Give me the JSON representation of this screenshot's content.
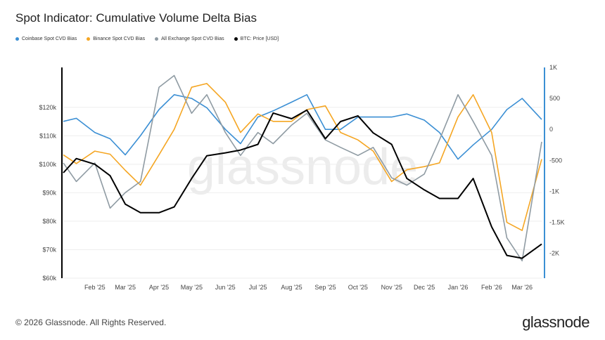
{
  "title": "Spot Indicator: Cumulative Volume Delta Bias",
  "footer": "© 2026 Glassnode. All Rights Reserved.",
  "logo": "glassnode",
  "watermark": "glassnode",
  "chart_data": {
    "type": "line",
    "title": "Spot Indicator: Cumulative Volume Delta Bias",
    "x_ticks": [
      "Feb '25",
      "Mar '25",
      "Apr '25",
      "May '25",
      "Jun '25",
      "Jul '25",
      "Aug '25",
      "Sep '25",
      "Oct '25",
      "Nov '25",
      "Dec '25",
      "Jan '26",
      "Feb '26",
      "Mar '26"
    ],
    "x_tick_dates": [
      "2025-02-01",
      "2025-03-01",
      "2025-04-01",
      "2025-05-01",
      "2025-06-01",
      "2025-07-01",
      "2025-08-01",
      "2025-09-01",
      "2025-10-01",
      "2025-11-01",
      "2025-12-01",
      "2026-01-01",
      "2026-02-01",
      "2026-03-01"
    ],
    "xlim": [
      "2025-01-03",
      "2026-03-19"
    ],
    "y_left": {
      "ticks": [
        "$60k",
        "$70k",
        "$80k",
        "$90k",
        "$100k",
        "$110k",
        "$120k"
      ],
      "tick_values": [
        60,
        70,
        80,
        90,
        100,
        110,
        120
      ],
      "ylim": [
        60,
        134
      ],
      "unit": "USD (thousands)"
    },
    "y_right": {
      "ticks": [
        "-2K",
        "-1.5K",
        "-1K",
        "-500",
        "0",
        "500",
        "1K"
      ],
      "tick_values": [
        -2000,
        -1500,
        -1000,
        -500,
        0,
        500,
        1000
      ],
      "ylim": [
        -2400,
        1000
      ],
      "color": "#3b8fd4"
    },
    "grid": "horizontal",
    "legend_placement": "top-left",
    "x": [
      "2025-01-03",
      "2025-01-15",
      "2025-02-01",
      "2025-02-15",
      "2025-03-01",
      "2025-03-15",
      "2025-04-01",
      "2025-04-15",
      "2025-05-01",
      "2025-05-15",
      "2025-06-01",
      "2025-06-15",
      "2025-07-01",
      "2025-07-15",
      "2025-08-01",
      "2025-08-15",
      "2025-09-01",
      "2025-09-15",
      "2025-10-01",
      "2025-10-15",
      "2025-11-01",
      "2025-11-15",
      "2025-12-01",
      "2025-12-15",
      "2026-01-01",
      "2026-01-15",
      "2026-02-01",
      "2026-02-15",
      "2026-03-01",
      "2026-03-19"
    ],
    "series": [
      {
        "name": "Coinbase Spot CVD Bias",
        "axis": "right",
        "color": "#3b8fd4",
        "values": [
          130,
          180,
          -50,
          -150,
          -410,
          -100,
          320,
          560,
          500,
          350,
          0,
          -230,
          200,
          300,
          440,
          560,
          0,
          0,
          200,
          200,
          200,
          250,
          150,
          -50,
          -480,
          -250,
          0,
          320,
          500,
          160
        ]
      },
      {
        "name": "Binance Spot CVD Bias",
        "axis": "right",
        "color": "#f5a623",
        "values": [
          -410,
          -550,
          -350,
          -400,
          -660,
          -900,
          -410,
          0,
          680,
          740,
          440,
          -50,
          250,
          130,
          130,
          320,
          380,
          -50,
          -170,
          -350,
          -840,
          -650,
          -600,
          -540,
          200,
          560,
          -50,
          -1500,
          -1630,
          -480
        ]
      },
      {
        "name": "All Exchange Spot CVD Bias",
        "axis": "right",
        "color": "#8f9ba3",
        "values": [
          -540,
          -840,
          -540,
          -1270,
          -1020,
          -840,
          680,
          870,
          260,
          560,
          -50,
          -420,
          -50,
          -230,
          70,
          260,
          -170,
          -290,
          -420,
          -290,
          -780,
          -900,
          -720,
          -170,
          560,
          130,
          -420,
          -1750,
          -2120,
          -200
        ]
      },
      {
        "name": "BTC: Price [USD]",
        "axis": "left",
        "color": "#000000",
        "values": [
          97,
          102,
          100,
          96,
          86,
          83,
          83,
          85,
          95,
          103,
          104,
          105,
          107,
          118,
          116,
          119,
          109,
          115,
          117,
          111,
          107,
          95,
          91,
          88,
          88,
          95,
          78,
          68,
          67,
          72
        ]
      }
    ]
  }
}
